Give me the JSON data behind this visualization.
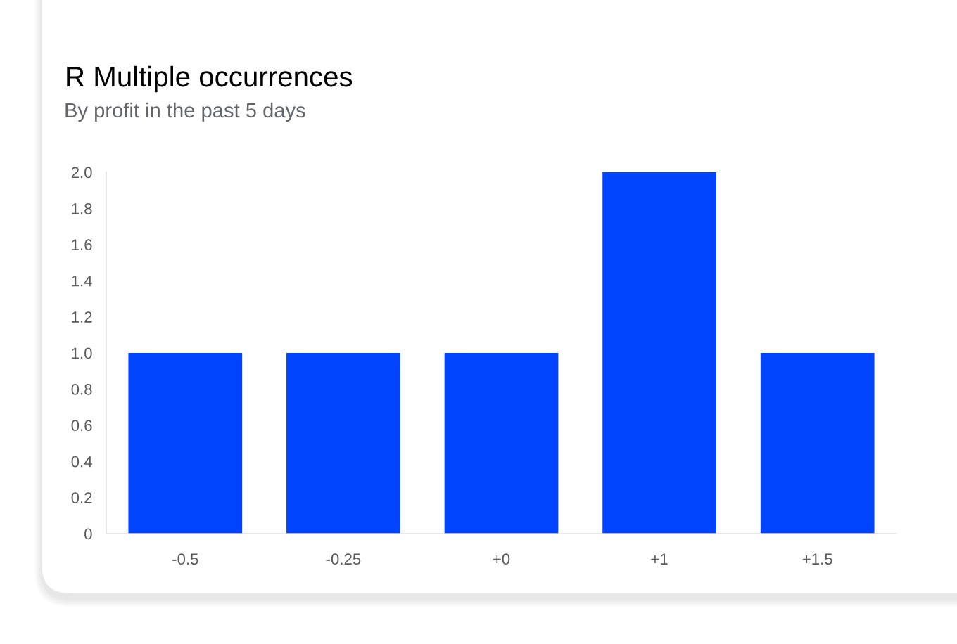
{
  "chart_data": {
    "type": "bar",
    "title": "R Multiple occurrences",
    "subtitle": "By profit in the past 5 days",
    "categories": [
      "-0.5",
      "-0.25",
      "+0",
      "+1",
      "+1.5"
    ],
    "values": [
      1,
      1,
      1,
      2,
      1
    ],
    "color": "#0044ff",
    "ylim": [
      0,
      2
    ],
    "yticks": [
      0,
      0.2,
      0.4,
      0.6,
      0.8,
      {
        "value": 1,
        "label": "1.0"
      },
      1.2,
      1.4,
      1.6,
      1.8,
      {
        "value": 2,
        "label": "2.0"
      }
    ]
  }
}
